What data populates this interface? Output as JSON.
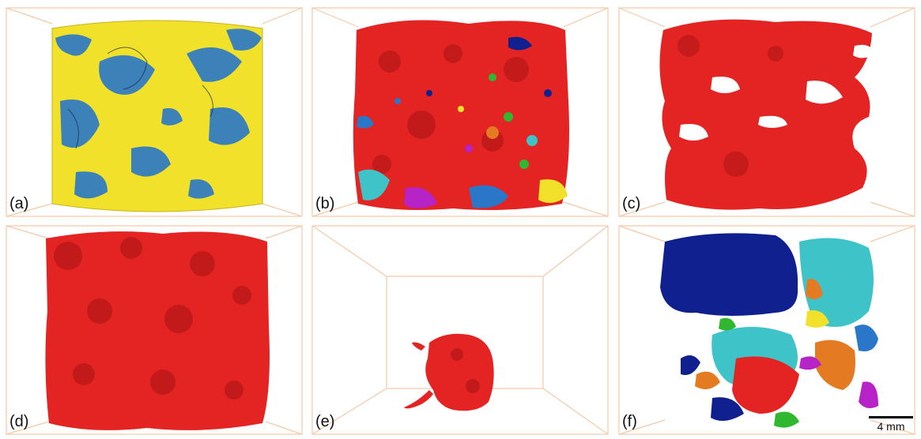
{
  "panels": [
    {
      "label": "(a)",
      "content": "cylinder"
    },
    {
      "label": "(b)",
      "content": "multicolor-cube"
    },
    {
      "label": "(c)",
      "content": "red-cube-sparse"
    },
    {
      "label": "(d)",
      "content": "red-cube-dense"
    },
    {
      "label": "(e)",
      "content": "red-small-cluster"
    },
    {
      "label": "(f)",
      "content": "multicolor-clusters"
    }
  ],
  "scale_bar": {
    "label": "4 mm"
  },
  "colors": {
    "frame": "#f4c9a8",
    "red": "#e42323",
    "darkred": "#a81414",
    "yellow": "#f1e12a",
    "blue": "#2a77c9",
    "navy": "#10208f",
    "cyan": "#3ec4c8",
    "green": "#2fb82f",
    "magenta": "#b623c6",
    "orange": "#e47b22"
  }
}
